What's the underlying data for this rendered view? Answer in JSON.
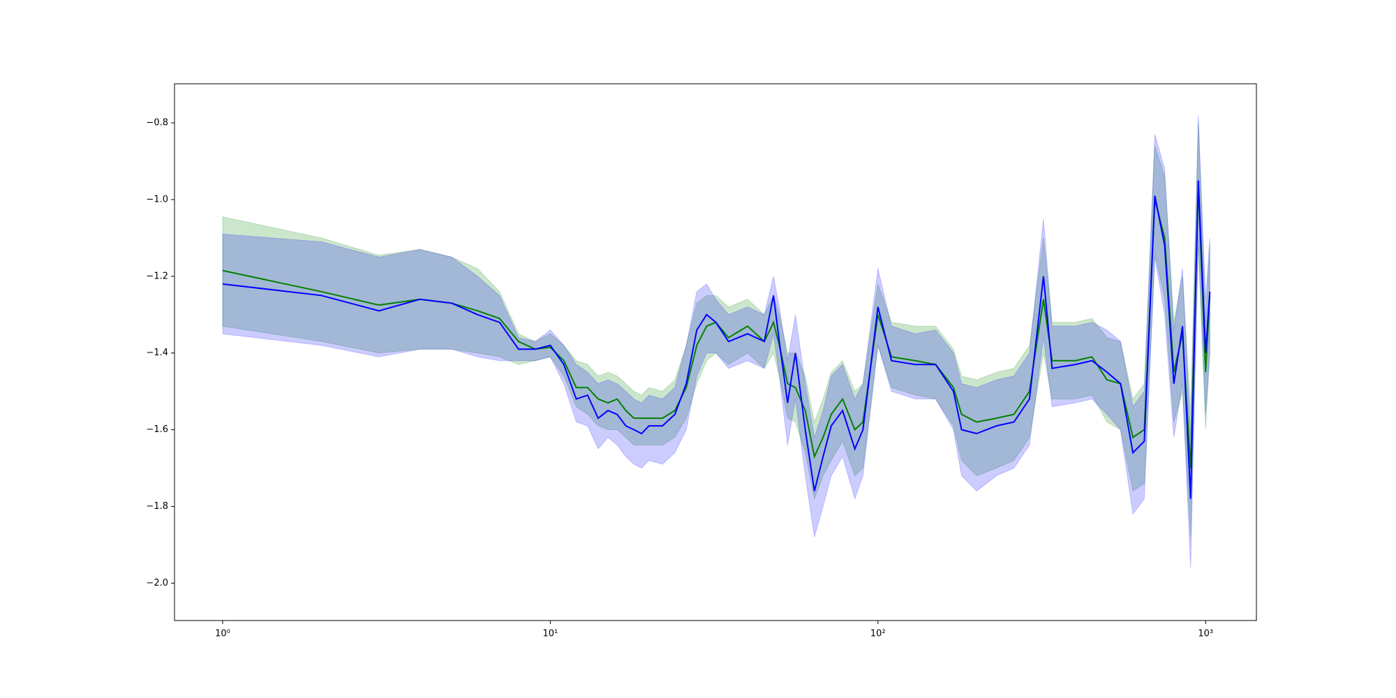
{
  "chart_data": {
    "type": "line",
    "x": [
      1,
      2,
      3,
      4,
      5,
      6,
      7,
      8,
      9,
      10,
      11,
      12,
      13,
      14,
      15,
      16,
      17,
      18,
      19,
      20,
      22,
      24,
      26,
      28,
      30,
      32,
      35,
      40,
      45,
      48,
      50,
      53,
      56,
      60,
      64,
      68,
      72,
      78,
      85,
      90,
      100,
      110,
      130,
      150,
      170,
      180,
      200,
      230,
      260,
      290,
      320,
      340,
      400,
      450,
      500,
      550,
      600,
      650,
      700,
      750,
      800,
      850,
      900,
      950,
      1000,
      1030
    ],
    "series": [
      {
        "color": "#008000",
        "values": [
          -1.185,
          -1.24,
          -1.275,
          -1.26,
          -1.27,
          -1.29,
          -1.31,
          -1.37,
          -1.39,
          -1.385,
          -1.42,
          -1.49,
          -1.49,
          -1.52,
          -1.53,
          -1.52,
          -1.55,
          -1.57,
          -1.57,
          -1.57,
          -1.57,
          -1.55,
          -1.49,
          -1.38,
          -1.33,
          -1.32,
          -1.36,
          -1.33,
          -1.37,
          -1.32,
          -1.38,
          -1.48,
          -1.49,
          -1.55,
          -1.67,
          -1.62,
          -1.56,
          -1.52,
          -1.6,
          -1.58,
          -1.3,
          -1.41,
          -1.42,
          -1.43,
          -1.49,
          -1.56,
          -1.58,
          -1.57,
          -1.56,
          -1.5,
          -1.26,
          -1.42,
          -1.42,
          -1.41,
          -1.47,
          -1.48,
          -1.62,
          -1.6,
          -1.0,
          -1.1,
          -1.45,
          -1.35,
          -1.7,
          -0.96,
          -1.45,
          -1.25
        ],
        "upper": [
          -1.045,
          -1.1,
          -1.145,
          -1.13,
          -1.15,
          -1.18,
          -1.24,
          -1.35,
          -1.37,
          -1.35,
          -1.38,
          -1.42,
          -1.43,
          -1.46,
          -1.45,
          -1.46,
          -1.48,
          -1.5,
          -1.51,
          -1.49,
          -1.5,
          -1.47,
          -1.38,
          -1.27,
          -1.25,
          -1.25,
          -1.28,
          -1.26,
          -1.3,
          -1.25,
          -1.3,
          -1.4,
          -1.4,
          -1.46,
          -1.58,
          -1.52,
          -1.45,
          -1.42,
          -1.5,
          -1.48,
          -1.22,
          -1.32,
          -1.33,
          -1.33,
          -1.39,
          -1.46,
          -1.47,
          -1.45,
          -1.44,
          -1.38,
          -1.1,
          -1.32,
          -1.32,
          -1.31,
          -1.36,
          -1.37,
          -1.52,
          -1.48,
          -0.86,
          -0.94,
          -1.32,
          -1.2,
          -1.55,
          -0.8,
          -1.32,
          -1.12
        ],
        "lower": [
          -1.33,
          -1.37,
          -1.4,
          -1.39,
          -1.39,
          -1.4,
          -1.41,
          -1.43,
          -1.42,
          -1.41,
          -1.46,
          -1.54,
          -1.56,
          -1.59,
          -1.6,
          -1.6,
          -1.62,
          -1.64,
          -1.64,
          -1.64,
          -1.64,
          -1.62,
          -1.57,
          -1.48,
          -1.42,
          -1.4,
          -1.43,
          -1.4,
          -1.44,
          -1.4,
          -1.46,
          -1.57,
          -1.58,
          -1.66,
          -1.78,
          -1.72,
          -1.68,
          -1.63,
          -1.72,
          -1.7,
          -1.38,
          -1.49,
          -1.51,
          -1.52,
          -1.59,
          -1.68,
          -1.72,
          -1.7,
          -1.68,
          -1.62,
          -1.4,
          -1.52,
          -1.52,
          -1.51,
          -1.58,
          -1.6,
          -1.76,
          -1.74,
          -1.14,
          -1.26,
          -1.58,
          -1.5,
          -1.88,
          -1.12,
          -1.6,
          -1.4
        ]
      },
      {
        "color": "#0000ff",
        "values": [
          -1.22,
          -1.25,
          -1.29,
          -1.26,
          -1.27,
          -1.3,
          -1.32,
          -1.39,
          -1.39,
          -1.38,
          -1.43,
          -1.52,
          -1.51,
          -1.57,
          -1.55,
          -1.56,
          -1.59,
          -1.6,
          -1.61,
          -1.59,
          -1.59,
          -1.56,
          -1.48,
          -1.34,
          -1.3,
          -1.32,
          -1.37,
          -1.35,
          -1.37,
          -1.25,
          -1.37,
          -1.53,
          -1.4,
          -1.6,
          -1.76,
          -1.67,
          -1.59,
          -1.55,
          -1.65,
          -1.6,
          -1.28,
          -1.42,
          -1.43,
          -1.43,
          -1.5,
          -1.6,
          -1.61,
          -1.59,
          -1.58,
          -1.52,
          -1.2,
          -1.44,
          -1.43,
          -1.42,
          -1.45,
          -1.48,
          -1.66,
          -1.63,
          -0.99,
          -1.12,
          -1.48,
          -1.33,
          -1.78,
          -0.95,
          -1.4,
          -1.24
        ],
        "upper": [
          -1.09,
          -1.11,
          -1.15,
          -1.13,
          -1.15,
          -1.2,
          -1.25,
          -1.36,
          -1.37,
          -1.34,
          -1.38,
          -1.43,
          -1.45,
          -1.48,
          -1.47,
          -1.48,
          -1.5,
          -1.52,
          -1.53,
          -1.51,
          -1.52,
          -1.49,
          -1.38,
          -1.24,
          -1.22,
          -1.26,
          -1.3,
          -1.28,
          -1.3,
          -1.2,
          -1.28,
          -1.42,
          -1.3,
          -1.48,
          -1.62,
          -1.55,
          -1.46,
          -1.43,
          -1.52,
          -1.48,
          -1.18,
          -1.33,
          -1.35,
          -1.34,
          -1.4,
          -1.48,
          -1.49,
          -1.47,
          -1.46,
          -1.4,
          -1.05,
          -1.33,
          -1.33,
          -1.32,
          -1.34,
          -1.37,
          -1.54,
          -1.5,
          -0.83,
          -0.92,
          -1.34,
          -1.18,
          -1.62,
          -0.78,
          -1.26,
          -1.1
        ],
        "lower": [
          -1.35,
          -1.38,
          -1.41,
          -1.39,
          -1.39,
          -1.41,
          -1.42,
          -1.42,
          -1.42,
          -1.41,
          -1.48,
          -1.58,
          -1.59,
          -1.65,
          -1.62,
          -1.64,
          -1.67,
          -1.69,
          -1.7,
          -1.68,
          -1.69,
          -1.66,
          -1.6,
          -1.46,
          -1.4,
          -1.4,
          -1.44,
          -1.42,
          -1.44,
          -1.35,
          -1.46,
          -1.64,
          -1.52,
          -1.72,
          -1.88,
          -1.8,
          -1.72,
          -1.67,
          -1.78,
          -1.72,
          -1.38,
          -1.5,
          -1.52,
          -1.52,
          -1.6,
          -1.72,
          -1.76,
          -1.72,
          -1.7,
          -1.64,
          -1.36,
          -1.54,
          -1.53,
          -1.52,
          -1.56,
          -1.6,
          -1.82,
          -1.78,
          -1.15,
          -1.3,
          -1.62,
          -1.48,
          -1.96,
          -1.1,
          -1.56,
          -1.4
        ]
      }
    ],
    "xlog": true,
    "xlim": [
      0.713,
      1429
    ],
    "xticks": [
      {
        "value": 1,
        "label": "10⁰"
      },
      {
        "value": 10,
        "label": "10¹"
      },
      {
        "value": 100,
        "label": "10²"
      },
      {
        "value": 1000,
        "label": "10³"
      }
    ],
    "ylim": [
      -2.0975,
      -0.698
    ],
    "yticks": [
      {
        "value": -2.0,
        "label": "−2.0"
      },
      {
        "value": -1.8,
        "label": "−1.8"
      },
      {
        "value": -1.6,
        "label": "−1.6"
      },
      {
        "value": -1.4,
        "label": "−1.4"
      },
      {
        "value": -1.2,
        "label": "−1.2"
      },
      {
        "value": -1.0,
        "label": "−1.0"
      },
      {
        "value": -0.8,
        "label": "−0.8"
      }
    ],
    "band_opacity": 0.2,
    "grid": false
  }
}
